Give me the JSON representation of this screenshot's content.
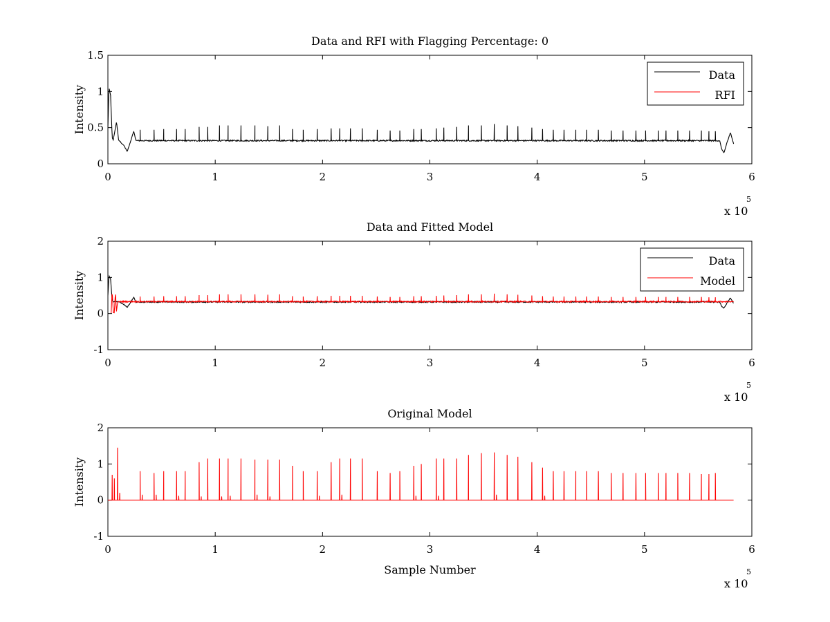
{
  "figure": {
    "background": "#ffffff"
  },
  "colors": {
    "data": "#000000",
    "rfi": "#ff0000",
    "model": "#ff0000",
    "axes": "#000000"
  },
  "chart_data": [
    {
      "type": "line",
      "title": "Data and RFI with Flagging Percentage: 0",
      "xlabel": "",
      "ylabel": "Intensity",
      "xlim": [
        0,
        6
      ],
      "ylim": [
        0,
        1.5
      ],
      "xticks": [
        "0",
        "1",
        "2",
        "3",
        "4",
        "5",
        "6"
      ],
      "yticks": [
        "0",
        "0.5",
        "1",
        "1.5"
      ],
      "ytick_values": [
        0,
        0.5,
        1,
        1.5
      ],
      "x_multiplier": {
        "base": "x 10",
        "exponent": "5"
      },
      "legend": {
        "placement": "top-right",
        "entries": [
          "Data",
          "RFI"
        ]
      },
      "series": [
        {
          "name": "Data",
          "color": "#000000",
          "baseline": 0.32,
          "points": [
            [
              0.0,
              0.5
            ],
            [
              0.01,
              1.05
            ],
            [
              0.025,
              0.95
            ],
            [
              0.04,
              0.36
            ],
            [
              0.05,
              0.33
            ],
            [
              0.08,
              0.58
            ],
            [
              0.1,
              0.33
            ],
            [
              0.15,
              0.25
            ],
            [
              0.18,
              0.17
            ],
            [
              0.21,
              0.3
            ],
            [
              0.24,
              0.45
            ],
            [
              0.26,
              0.33
            ],
            [
              5.7,
              0.32
            ],
            [
              5.72,
              0.2
            ],
            [
              5.74,
              0.15
            ],
            [
              5.77,
              0.3
            ],
            [
              5.8,
              0.43
            ],
            [
              5.83,
              0.28
            ]
          ],
          "spikes": [
            [
              0.3,
              0.47
            ],
            [
              0.43,
              0.47
            ],
            [
              0.52,
              0.48
            ],
            [
              0.64,
              0.48
            ],
            [
              0.72,
              0.48
            ],
            [
              0.85,
              0.51
            ],
            [
              0.93,
              0.51
            ],
            [
              1.04,
              0.53
            ],
            [
              1.12,
              0.53
            ],
            [
              1.24,
              0.53
            ],
            [
              1.37,
              0.53
            ],
            [
              1.49,
              0.52
            ],
            [
              1.6,
              0.53
            ],
            [
              1.72,
              0.48
            ],
            [
              1.82,
              0.47
            ],
            [
              1.95,
              0.48
            ],
            [
              2.08,
              0.49
            ],
            [
              2.16,
              0.49
            ],
            [
              2.26,
              0.49
            ],
            [
              2.37,
              0.49
            ],
            [
              2.51,
              0.47
            ],
            [
              2.63,
              0.46
            ],
            [
              2.72,
              0.46
            ],
            [
              2.85,
              0.48
            ],
            [
              2.92,
              0.48
            ],
            [
              3.06,
              0.49
            ],
            [
              3.13,
              0.5
            ],
            [
              3.25,
              0.51
            ],
            [
              3.36,
              0.53
            ],
            [
              3.48,
              0.53
            ],
            [
              3.6,
              0.55
            ],
            [
              3.72,
              0.53
            ],
            [
              3.82,
              0.52
            ],
            [
              3.95,
              0.5
            ],
            [
              4.05,
              0.48
            ],
            [
              4.15,
              0.47
            ],
            [
              4.25,
              0.47
            ],
            [
              4.36,
              0.47
            ],
            [
              4.46,
              0.47
            ],
            [
              4.57,
              0.47
            ],
            [
              4.69,
              0.46
            ],
            [
              4.8,
              0.46
            ],
            [
              4.92,
              0.46
            ],
            [
              5.01,
              0.46
            ],
            [
              5.13,
              0.46
            ],
            [
              5.2,
              0.46
            ],
            [
              5.31,
              0.46
            ],
            [
              5.42,
              0.46
            ],
            [
              5.53,
              0.46
            ],
            [
              5.6,
              0.45
            ],
            [
              5.66,
              0.45
            ]
          ]
        },
        {
          "name": "RFI",
          "color": "#ff0000",
          "points": []
        }
      ]
    },
    {
      "type": "line",
      "title": "Data and Fitted Model",
      "xlabel": "",
      "ylabel": "Intensity",
      "xlim": [
        0,
        6
      ],
      "ylim": [
        -1,
        2
      ],
      "xticks": [
        "0",
        "1",
        "2",
        "3",
        "4",
        "5",
        "6"
      ],
      "yticks": [
        "-1",
        "0",
        "1",
        "2"
      ],
      "ytick_values": [
        -1,
        0,
        1,
        2
      ],
      "x_multiplier": {
        "base": "x 10",
        "exponent": "5"
      },
      "legend": {
        "placement": "top-right",
        "entries": [
          "Data",
          "Model"
        ]
      },
      "series": [
        {
          "name": "Data",
          "color": "#000000",
          "baseline": 0.32,
          "points": [
            [
              0.0,
              0.5
            ],
            [
              0.01,
              1.05
            ],
            [
              0.025,
              0.95
            ],
            [
              0.04,
              0.36
            ],
            [
              0.05,
              0.33
            ],
            [
              0.1,
              0.33
            ],
            [
              0.15,
              0.25
            ],
            [
              0.18,
              0.17
            ],
            [
              0.21,
              0.3
            ],
            [
              0.24,
              0.45
            ],
            [
              0.26,
              0.33
            ],
            [
              5.7,
              0.32
            ],
            [
              5.72,
              0.2
            ],
            [
              5.74,
              0.15
            ],
            [
              5.77,
              0.3
            ],
            [
              5.8,
              0.43
            ],
            [
              5.83,
              0.28
            ]
          ]
        },
        {
          "name": "Model",
          "color": "#ff0000",
          "baseline": 0.33,
          "points": [
            [
              0.03,
              0.02
            ],
            [
              0.04,
              0.65
            ],
            [
              0.05,
              0.02
            ],
            [
              0.06,
              0.02
            ],
            [
              0.07,
              0.6
            ],
            [
              0.08,
              0.05
            ],
            [
              0.09,
              0.3
            ],
            [
              0.1,
              0.33
            ]
          ],
          "spikes": [
            [
              0.3,
              0.47
            ],
            [
              0.43,
              0.47
            ],
            [
              0.52,
              0.48
            ],
            [
              0.64,
              0.48
            ],
            [
              0.72,
              0.48
            ],
            [
              0.85,
              0.51
            ],
            [
              0.93,
              0.51
            ],
            [
              1.04,
              0.53
            ],
            [
              1.12,
              0.53
            ],
            [
              1.24,
              0.53
            ],
            [
              1.37,
              0.53
            ],
            [
              1.49,
              0.52
            ],
            [
              1.6,
              0.53
            ],
            [
              1.72,
              0.48
            ],
            [
              1.82,
              0.47
            ],
            [
              1.95,
              0.48
            ],
            [
              2.08,
              0.49
            ],
            [
              2.16,
              0.49
            ],
            [
              2.26,
              0.49
            ],
            [
              2.37,
              0.49
            ],
            [
              2.51,
              0.47
            ],
            [
              2.63,
              0.46
            ],
            [
              2.72,
              0.46
            ],
            [
              2.85,
              0.48
            ],
            [
              2.92,
              0.48
            ],
            [
              3.06,
              0.49
            ],
            [
              3.13,
              0.5
            ],
            [
              3.25,
              0.51
            ],
            [
              3.36,
              0.53
            ],
            [
              3.48,
              0.53
            ],
            [
              3.6,
              0.55
            ],
            [
              3.72,
              0.53
            ],
            [
              3.82,
              0.52
            ],
            [
              3.95,
              0.5
            ],
            [
              4.05,
              0.48
            ],
            [
              4.15,
              0.47
            ],
            [
              4.25,
              0.47
            ],
            [
              4.36,
              0.47
            ],
            [
              4.46,
              0.47
            ],
            [
              4.57,
              0.47
            ],
            [
              4.69,
              0.46
            ],
            [
              4.8,
              0.46
            ],
            [
              4.92,
              0.46
            ],
            [
              5.01,
              0.46
            ],
            [
              5.13,
              0.46
            ],
            [
              5.2,
              0.46
            ],
            [
              5.31,
              0.46
            ],
            [
              5.42,
              0.46
            ],
            [
              5.53,
              0.46
            ],
            [
              5.6,
              0.45
            ],
            [
              5.66,
              0.45
            ]
          ]
        }
      ]
    },
    {
      "type": "line",
      "title": "Original Model",
      "xlabel": "Sample Number",
      "ylabel": "Intensity",
      "xlim": [
        0,
        6
      ],
      "ylim": [
        -1,
        2
      ],
      "xticks": [
        "0",
        "1",
        "2",
        "3",
        "4",
        "5",
        "6"
      ],
      "yticks": [
        "-1",
        "0",
        "1",
        "2"
      ],
      "ytick_values": [
        -1,
        0,
        1,
        2
      ],
      "x_multiplier": {
        "base": "x 10",
        "exponent": "5"
      },
      "legend": null,
      "series": [
        {
          "name": "",
          "color": "#ff0000",
          "baseline": 0.0,
          "x_end": 5.83,
          "spikes": [
            [
              0.04,
              0.7
            ],
            [
              0.06,
              0.6
            ],
            [
              0.09,
              1.45
            ],
            [
              0.11,
              0.2
            ],
            [
              0.3,
              0.8
            ],
            [
              0.32,
              0.15
            ],
            [
              0.43,
              0.75
            ],
            [
              0.45,
              0.15
            ],
            [
              0.52,
              0.8
            ],
            [
              0.64,
              0.8
            ],
            [
              0.66,
              0.12
            ],
            [
              0.72,
              0.8
            ],
            [
              0.85,
              1.05
            ],
            [
              0.87,
              0.1
            ],
            [
              0.93,
              1.15
            ],
            [
              1.04,
              1.15
            ],
            [
              1.06,
              0.1
            ],
            [
              1.12,
              1.15
            ],
            [
              1.14,
              0.12
            ],
            [
              1.24,
              1.15
            ],
            [
              1.37,
              1.12
            ],
            [
              1.39,
              0.15
            ],
            [
              1.49,
              1.12
            ],
            [
              1.51,
              0.1
            ],
            [
              1.6,
              1.12
            ],
            [
              1.72,
              0.95
            ],
            [
              1.82,
              0.8
            ],
            [
              1.95,
              0.8
            ],
            [
              1.97,
              0.12
            ],
            [
              2.08,
              1.05
            ],
            [
              2.16,
              1.15
            ],
            [
              2.18,
              0.15
            ],
            [
              2.26,
              1.15
            ],
            [
              2.37,
              1.15
            ],
            [
              2.51,
              0.8
            ],
            [
              2.63,
              0.75
            ],
            [
              2.72,
              0.8
            ],
            [
              2.85,
              0.95
            ],
            [
              2.87,
              0.12
            ],
            [
              2.92,
              1.0
            ],
            [
              3.06,
              1.15
            ],
            [
              3.08,
              0.12
            ],
            [
              3.13,
              1.15
            ],
            [
              3.25,
              1.15
            ],
            [
              3.36,
              1.25
            ],
            [
              3.48,
              1.3
            ],
            [
              3.6,
              1.32
            ],
            [
              3.62,
              0.15
            ],
            [
              3.72,
              1.25
            ],
            [
              3.82,
              1.2
            ],
            [
              3.95,
              1.05
            ],
            [
              4.05,
              0.9
            ],
            [
              4.07,
              0.12
            ],
            [
              4.15,
              0.8
            ],
            [
              4.25,
              0.8
            ],
            [
              4.36,
              0.8
            ],
            [
              4.46,
              0.8
            ],
            [
              4.57,
              0.8
            ],
            [
              4.69,
              0.75
            ],
            [
              4.8,
              0.75
            ],
            [
              4.92,
              0.75
            ],
            [
              5.01,
              0.75
            ],
            [
              5.13,
              0.75
            ],
            [
              5.2,
              0.75
            ],
            [
              5.31,
              0.75
            ],
            [
              5.42,
              0.75
            ],
            [
              5.53,
              0.72
            ],
            [
              5.6,
              0.72
            ],
            [
              5.66,
              0.75
            ]
          ]
        }
      ]
    }
  ]
}
